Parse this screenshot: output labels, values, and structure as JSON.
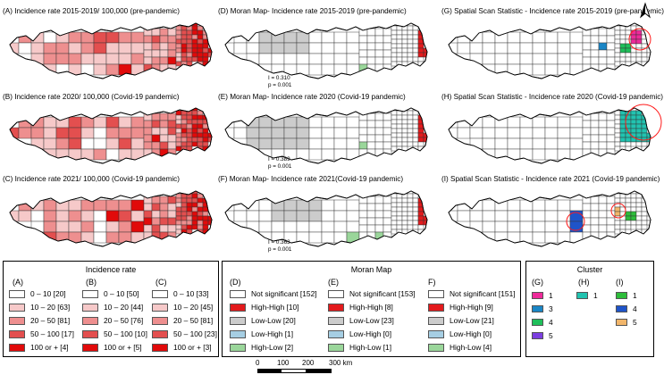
{
  "colors": {
    "inc_0_10": "#ffffff",
    "inc_10_20": "#f6c9c9",
    "inc_20_50": "#ee8f8f",
    "inc_50_100": "#e34f4f",
    "inc_100": "#e10a0a",
    "hh": "#e31a1c",
    "ll": "#cccccc",
    "lh": "#a6cee3",
    "hl": "#9ad69a",
    "not_sig": "#ffffff",
    "c1": "#ee2a9a",
    "c3": "#1a86c6",
    "c4": "#1fbf5a",
    "c5": "#7c3ee0",
    "h1": "#21c3b0",
    "i1": "#2ebd3b",
    "i4": "#1f54c9",
    "i5": "#f2b66b",
    "circle": "#ff1a1a"
  },
  "panels": {
    "a": {
      "title": "(A) Incidence rate 2015-2019/ 100,000 (pre-pandemic)"
    },
    "b": {
      "title": "(B) Incidence rate 2020/ 100,000 (Covid-19 pandemic)"
    },
    "c": {
      "title": "(C) Incidence rate 2021/ 100,000 (Covid-19 pandemic)"
    },
    "d": {
      "title": "(D) Moran Map- Incidence rate 2015-2019 (pre-pandemic)",
      "i": "I = 0.310",
      "p": "p = 0.001"
    },
    "e": {
      "title": "(E) Moran Map- Incidence rate 2020 (Covid-19 pandemic)",
      "i": "I = 0.389",
      "p": "p = 0.001"
    },
    "f": {
      "title": "(F) Moran Map- Incidence rate 2021(Covid-19 pandemic)",
      "i": "I = 0.363",
      "p": "p = 0.001"
    },
    "g": {
      "title": "(G) Spatial Scan Statistic - Incidence rate 2015-2019 (pre-pandemic)"
    },
    "h": {
      "title": "(H) Spatial Scan Statistic - Incidence rate 2020 (Covid-19 pandemic)"
    },
    "i": {
      "title": "(I) Spatial Scan Statistic - Incidence rate 2021 (Covid-19 pandemic)"
    }
  },
  "north_arrow": "A",
  "incidence_legend": {
    "title": "Incidence rate",
    "columns": [
      {
        "head": "(A)",
        "rows": [
          "0 – 10 [20]",
          "10 – 20 [63]",
          "20 – 50 [81]",
          "50 – 100 [17]",
          "100 or + [4]"
        ]
      },
      {
        "head": "(B)",
        "rows": [
          "0 – 10 [50]",
          "10 – 20 [44]",
          "20 – 50 [76]",
          "50 – 100 [10]",
          "100 or + [5]"
        ]
      },
      {
        "head": "(C)",
        "rows": [
          "0 – 10 [33]",
          "10 – 20 [45]",
          "20 – 50 [81]",
          "50 – 100 [23]",
          "100 or + [3]"
        ]
      }
    ]
  },
  "moran_legend": {
    "title": "Moran Map",
    "columns": [
      {
        "head": "(D)",
        "rows": [
          "Not significant [152]",
          "High-High [10]",
          "Low-Low [20]",
          "Low-High [1]",
          "High-Low [2]"
        ]
      },
      {
        "head": "(E)",
        "rows": [
          "Not significant [153]",
          "High-High [8]",
          "Low-Low [23]",
          "Low-High [0]",
          "High-Low [1]"
        ]
      },
      {
        "head": "F)",
        "rows": [
          "Not significant [151]",
          "High-High [9]",
          "Low-Low [21]",
          "Low-High [0]",
          "High-Low [4]"
        ]
      }
    ]
  },
  "cluster_legend": {
    "title": "Cluster",
    "columns": [
      {
        "head": "(G)",
        "rows": [
          "1",
          "3",
          "4",
          "5"
        ]
      },
      {
        "head": "(H)",
        "rows": [
          "1"
        ]
      },
      {
        "head": "(I)",
        "rows": [
          "1",
          "4",
          "5"
        ]
      }
    ]
  },
  "scale_bar": {
    "labels": [
      "0",
      "100",
      "200",
      "300 km"
    ]
  }
}
